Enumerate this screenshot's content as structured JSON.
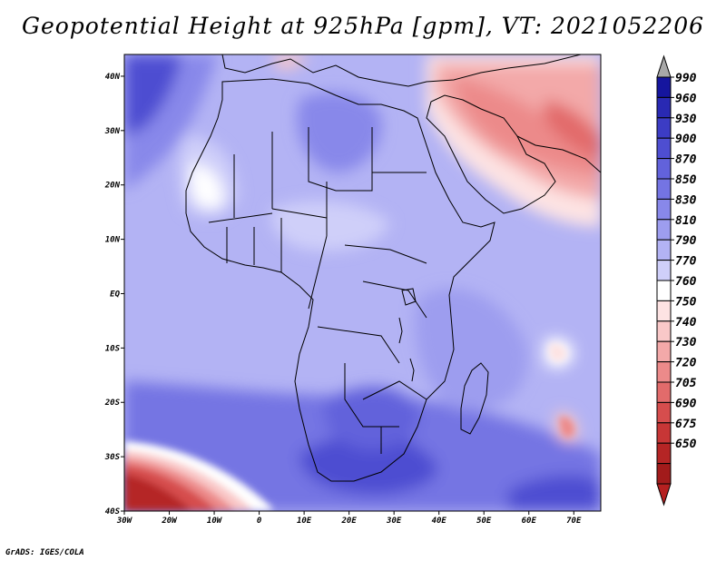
{
  "title": "Geopotential Height at 925hPa [gpm], VT: 2021052206",
  "footer": "GrADS: IGES/COLA",
  "map": {
    "lon_ticks": [
      "30W",
      "20W",
      "10W",
      "0",
      "10E",
      "20E",
      "30E",
      "40E",
      "50E",
      "60E",
      "70E"
    ],
    "lat_ticks": [
      "40N",
      "30N",
      "20N",
      "10N",
      "EQ",
      "10S",
      "20S",
      "30S",
      "40S"
    ],
    "lon_range": [
      -30,
      76
    ],
    "lat_range": [
      -40,
      44
    ]
  },
  "colorbar": {
    "levels": [
      "990",
      "960",
      "930",
      "900",
      "870",
      "850",
      "830",
      "810",
      "790",
      "770",
      "760",
      "750",
      "740",
      "730",
      "720",
      "705",
      "690",
      "675",
      "650"
    ],
    "colors": [
      "#15159e",
      "#2929b3",
      "#3c3cc4",
      "#4e4ed1",
      "#6262db",
      "#7474e3",
      "#8888ea",
      "#9d9def",
      "#b3b3f4",
      "#cfcff9",
      "#ffffff",
      "#fde3e3",
      "#f9c8c8",
      "#f3a9a9",
      "#ec8a8a",
      "#e26b6b",
      "#d64d4d",
      "#c73636",
      "#b52525",
      "#a21b1b"
    ],
    "min_cap_color": "#b52020",
    "max_cap_color": "#a8a8a8"
  }
}
